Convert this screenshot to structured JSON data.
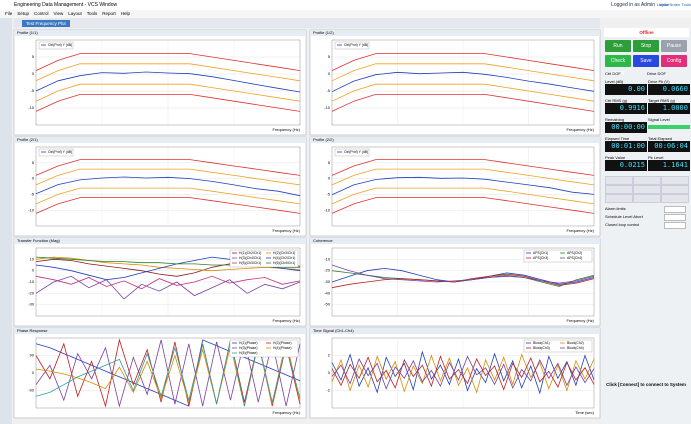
{
  "window": {
    "title": "Engineering Data Management - VCS Window",
    "user": "Logged in as Admin",
    "actions": [
      "Logout",
      "Write Notes",
      "Tools"
    ]
  },
  "menu": [
    "File",
    "Setup",
    "Control",
    "View",
    "Layout",
    "Tools",
    "Report",
    "Help"
  ],
  "tab": "Test Frequency Plot",
  "chart_data": [
    {
      "type": "line",
      "title": "Profile (1/1)",
      "x_label": "Frequency (Hz)",
      "ylim": [
        -15,
        10
      ],
      "yticks": [
        -10,
        -5,
        0,
        5
      ],
      "series": [
        {
          "color": "#e03030",
          "values": [
            1,
            4,
            6,
            6,
            6,
            6,
            6,
            6,
            5,
            4,
            3,
            2,
            1
          ]
        },
        {
          "color": "#f0a020",
          "values": [
            -2,
            1,
            3,
            3,
            3,
            3,
            3,
            3,
            2,
            1,
            0,
            -1,
            -2
          ]
        },
        {
          "name": "Ctrl(Prof) Y (dB)",
          "color": "#1f3fbf",
          "values": [
            -5,
            -2,
            -0.5,
            0.4,
            0.2,
            0.6,
            0.3,
            0.1,
            -0.8,
            -1.9,
            -3.1,
            -4.2,
            -5.3
          ]
        },
        {
          "color": "#f0a020",
          "values": [
            -8,
            -5,
            -3,
            -3,
            -3,
            -3,
            -3,
            -3,
            -4,
            -5,
            -6,
            -7,
            -8
          ]
        },
        {
          "color": "#e03030",
          "values": [
            -11,
            -8,
            -6,
            -6,
            -6,
            -6,
            -6,
            -6,
            -7,
            -8,
            -9,
            -10,
            -11
          ]
        }
      ]
    },
    {
      "type": "line",
      "title": "Profile (1/2)",
      "x_label": "Frequency (Hz)",
      "ylim": [
        -15,
        10
      ],
      "yticks": [
        -10,
        -5,
        0,
        5
      ],
      "series": [
        {
          "color": "#e03030",
          "values": [
            1,
            4,
            6,
            6,
            6,
            6,
            6,
            6,
            5,
            4,
            3,
            2,
            1
          ]
        },
        {
          "color": "#f0a020",
          "values": [
            -2,
            1,
            3,
            3,
            3,
            3,
            3,
            3,
            2,
            1,
            0,
            -1,
            -2
          ]
        },
        {
          "name": "Ctrl(Prof) Y (dB)",
          "color": "#1f3fbf",
          "values": [
            -5.2,
            -2.1,
            -0.2,
            0.5,
            0.1,
            0.3,
            0.5,
            -0.1,
            -1,
            -2.1,
            -3,
            -4.1,
            -5.1
          ]
        },
        {
          "color": "#f0a020",
          "values": [
            -8,
            -5,
            -3,
            -3,
            -3,
            -3,
            -3,
            -3,
            -4,
            -5,
            -6,
            -7,
            -8
          ]
        },
        {
          "color": "#e03030",
          "values": [
            -11,
            -8,
            -6,
            -6,
            -6,
            -6,
            -6,
            -6,
            -7,
            -8,
            -9,
            -10,
            -11
          ]
        }
      ]
    },
    {
      "type": "line",
      "title": "Profile (2/1)",
      "x_label": "Frequency (Hz)",
      "ylim": [
        -15,
        10
      ],
      "yticks": [
        -10,
        -5,
        0,
        5
      ],
      "series": [
        {
          "color": "#e03030",
          "values": [
            1,
            4,
            6,
            6,
            6,
            6,
            6,
            6,
            5,
            4,
            3,
            2,
            1
          ]
        },
        {
          "color": "#f0a020",
          "values": [
            -2,
            1,
            3,
            3,
            3,
            3,
            3,
            3,
            2,
            1,
            0,
            -1,
            -2
          ]
        },
        {
          "name": "Ctrl(Prof) Y (dB)",
          "color": "#1f3fbf",
          "values": [
            -4.8,
            -1.9,
            -0.4,
            0.2,
            0.5,
            0.2,
            0.4,
            0,
            -0.9,
            -2,
            -3.2,
            -4,
            -5.4
          ]
        },
        {
          "color": "#f0a020",
          "values": [
            -8,
            -5,
            -3,
            -3,
            -3,
            -3,
            -3,
            -3,
            -4,
            -5,
            -6,
            -7,
            -8
          ]
        },
        {
          "color": "#e03030",
          "values": [
            -11,
            -8,
            -6,
            -6,
            -6,
            -6,
            -6,
            -6,
            -7,
            -8,
            -9,
            -10,
            -11
          ]
        }
      ]
    },
    {
      "type": "line",
      "title": "Profile (2/2)",
      "x_label": "Frequency (Hz)",
      "ylim": [
        -15,
        10
      ],
      "yticks": [
        -10,
        -5,
        0,
        5
      ],
      "series": [
        {
          "color": "#e03030",
          "values": [
            1,
            4,
            6,
            6,
            6,
            6,
            6,
            6,
            5,
            4,
            3,
            2,
            1
          ]
        },
        {
          "color": "#f0a020",
          "values": [
            -2,
            1,
            3,
            3,
            3,
            3,
            3,
            3,
            2,
            1,
            0,
            -1,
            -2
          ]
        },
        {
          "name": "Ctrl(Prof) Y (dB)",
          "color": "#1f3fbf",
          "values": [
            -5.1,
            -2,
            -0.3,
            0.3,
            0.4,
            0.1,
            0.2,
            -0.2,
            -1.1,
            -2,
            -2.9,
            -4.3,
            -5
          ]
        },
        {
          "color": "#f0a020",
          "values": [
            -8,
            -5,
            -3,
            -3,
            -3,
            -3,
            -3,
            -3,
            -4,
            -5,
            -6,
            -7,
            -8
          ]
        },
        {
          "color": "#e03030",
          "values": [
            -11,
            -8,
            -6,
            -6,
            -6,
            -6,
            -6,
            -6,
            -7,
            -8,
            -9,
            -10,
            -11
          ]
        }
      ]
    },
    {
      "type": "line",
      "title": "Transfer Function (Mag)",
      "x_label": "Frequency (Hz)",
      "ylim": [
        -40,
        20
      ],
      "yticks": [
        -30,
        -20,
        -10,
        0,
        10
      ],
      "series": [
        {
          "name": "H(1)(Ch2/Ch1)",
          "color": "#8b1a1a",
          "values": [
            8,
            10,
            9,
            6,
            4,
            2,
            0,
            -3,
            -5,
            -2,
            3,
            6,
            8,
            7,
            5,
            4
          ]
        },
        {
          "name": "H(2)(Ch3/Ch1)",
          "color": "#d98c00",
          "values": [
            10,
            12,
            11,
            9,
            7,
            6,
            5,
            3,
            2,
            1,
            0,
            1,
            2,
            3,
            2,
            1
          ]
        },
        {
          "name": "H(3)(Ch4/Ch1)",
          "color": "#7a3fa0",
          "values": [
            -20,
            -10,
            -5,
            -15,
            -8,
            -25,
            -12,
            -18,
            -10,
            -22,
            -15,
            -8,
            -20,
            -12,
            -16,
            -10
          ]
        },
        {
          "name": "H(4)(Ch2/Ch1)",
          "color": "#1f3fbf",
          "values": [
            5,
            3,
            0,
            -4,
            -8,
            -6,
            -2,
            2,
            6,
            9,
            12,
            10,
            6,
            4,
            2,
            0
          ]
        },
        {
          "name": "H(5)(Ch3/Ch1)",
          "color": "#c03080",
          "values": [
            -5,
            -8,
            -12,
            -6,
            -14,
            -9,
            -16,
            -7,
            -13,
            -10,
            -5,
            -11,
            -8,
            -6,
            -12,
            -9
          ]
        },
        {
          "name": "H(6)(Ch4/Ch1)",
          "color": "#2f7f2f",
          "values": [
            12,
            11,
            10,
            9,
            8,
            8,
            7,
            7,
            6,
            6,
            5,
            5,
            4,
            4,
            3,
            3
          ]
        }
      ]
    },
    {
      "type": "line",
      "title": "Coherence",
      "x_label": "Frequency (Hz)",
      "ylim": [
        -60,
        0
      ],
      "yticks": [
        -50,
        -40,
        -30,
        -20,
        -10
      ],
      "series": [
        {
          "name": "APS(Ch1)",
          "color": "#1f3fbf",
          "values": [
            -30,
            -25,
            -20,
            -18,
            -20,
            -24,
            -28,
            -30,
            -28,
            -25,
            -22,
            -24,
            -28,
            -32,
            -30,
            -26
          ]
        },
        {
          "name": "APS(Ch2)",
          "color": "#2f7f2f",
          "values": [
            -20,
            -22,
            -24,
            -26,
            -27,
            -28,
            -29,
            -30,
            -28,
            -26,
            -24,
            -26,
            -30,
            -34,
            -28,
            -24
          ]
        },
        {
          "name": "APS(Ch3)",
          "color": "#c02020",
          "values": [
            -35,
            -32,
            -30,
            -28,
            -27,
            -28,
            -29,
            -30,
            -27,
            -25,
            -23,
            -25,
            -29,
            -33,
            -31,
            -27
          ]
        },
        {
          "name": "APS(Ch4)",
          "color": "#7a3fa0",
          "values": [
            -15,
            -20,
            -24,
            -27,
            -28,
            -29,
            -30,
            -29,
            -28,
            -26,
            -25,
            -26,
            -29,
            -31,
            -29,
            -25
          ]
        }
      ]
    },
    {
      "type": "line",
      "title": "Phase Response",
      "x_label": "Frequency (Hz)",
      "ylim": [
        -180,
        180
      ],
      "yticks": [
        -90,
        0,
        90
      ],
      "series": [
        {
          "name": "H(1)(Phase)",
          "color": "#1f3fbf",
          "values": [
            150,
            130,
            100,
            70,
            40,
            10,
            -20,
            -50,
            -80,
            -110,
            -140,
            -170,
            170,
            140,
            110,
            80,
            50,
            20,
            -10,
            -40
          ]
        },
        {
          "name": "H(2)(Phase)",
          "color": "#c02020",
          "values": [
            90,
            -30,
            150,
            -120,
            60,
            -170,
            170,
            -60,
            120,
            -150,
            160,
            -170,
            150,
            -160,
            170,
            -150,
            160,
            -170,
            140,
            -160
          ]
        },
        {
          "name": "H(3)(Phase)",
          "color": "#7a3fa0",
          "values": [
            -60,
            40,
            -140,
            100,
            -30,
            130,
            -170,
            80,
            -110,
            170,
            -160,
            150,
            -170,
            160,
            -140,
            170,
            -150,
            160,
            -170,
            150
          ]
        },
        {
          "name": "H(4)(Phase)",
          "color": "#d98c00",
          "values": [
            20,
            10,
            -5,
            -25,
            -50,
            -80,
            30,
            -100,
            60,
            -130,
            90,
            -150,
            120,
            -160,
            140,
            -170,
            150,
            -160,
            170,
            -150
          ]
        },
        {
          "name": "H(5)(Phase)",
          "color": "#2f9f9f",
          "values": [
            -120,
            -100,
            -60,
            -20,
            10,
            40,
            70,
            -90,
            100,
            -120,
            130,
            -140,
            150,
            -160,
            170,
            -170,
            160,
            -150,
            140,
            -130
          ]
        }
      ]
    },
    {
      "type": "line",
      "title": "Time Signal (Ch1-Ch4)",
      "x_label": "Time (sec)",
      "ylim": [
        -4,
        4
      ],
      "yticks": [
        -2,
        0,
        2
      ],
      "series": [
        {
          "name": "Block(Ch1)",
          "color": "#1f3fbf",
          "values": [
            1.2,
            -0.8,
            2.1,
            -1.5,
            0.6,
            -2.2,
            1.8,
            -0.4,
            1.1,
            -1.9,
            2.4,
            -0.7,
            0.9,
            -1.3,
            1.6,
            -2.0,
            0.5,
            -1.1,
            2.2,
            -0.9,
            1.4,
            -1.7,
            0.8,
            -2.3,
            1.9,
            -0.6,
            1.3,
            -1.4,
            2.0,
            -0.8
          ]
        },
        {
          "name": "Block(Ch2)",
          "color": "#d98c00",
          "values": [
            -1.0,
            1.5,
            -2.0,
            0.9,
            -1.6,
            1.9,
            -0.7,
            1.3,
            -2.1,
            0.8,
            -1.2,
            2.0,
            -0.9,
            1.7,
            -1.4,
            0.6,
            -2.2,
            1.5,
            -0.8,
            1.8,
            -1.3,
            2.1,
            -0.5,
            1.2,
            -1.8,
            0.9,
            -2.0,
            1.4,
            -0.7,
            1.6
          ]
        },
        {
          "name": "Block(Ch3)",
          "color": "#c02020",
          "values": [
            0.5,
            -1.4,
            1.0,
            -0.6,
            1.8,
            -1.0,
            0.3,
            -1.7,
            1.5,
            -0.4,
            0.9,
            -1.5,
            1.9,
            -0.7,
            0.4,
            -1.2,
            1.6,
            -0.3,
            0.8,
            -1.9,
            1.1,
            -0.5,
            1.7,
            -1.0,
            0.2,
            -1.6,
            1.2,
            -0.8,
            0.6,
            -1.3
          ]
        },
        {
          "name": "Block(Ch4)",
          "color": "#7a3fa0",
          "values": [
            -0.4,
            0.9,
            -1.2,
            1.6,
            -0.3,
            1.1,
            -1.8,
            0.7,
            -0.6,
            1.4,
            -1.0,
            0.3,
            -1.5,
            1.2,
            -0.8,
            1.9,
            -0.2,
            0.6,
            -1.3,
            1.0,
            -1.7,
            0.4,
            -0.9,
            1.5,
            -0.6,
            1.1,
            -1.4,
            0.7,
            -1.1,
            0.5
          ]
        }
      ]
    }
  ],
  "control": {
    "status": "Offline",
    "buttons": [
      "Run",
      "Stop",
      "Pause",
      "Check Items",
      "Save",
      "Config"
    ],
    "options": [
      "Ctrl DOF",
      "Drive DOF"
    ],
    "readouts": [
      {
        "label": "Level (dB)",
        "value": "0.00"
      },
      {
        "label": "Drive Pk (V)",
        "value": "0.0660"
      },
      {
        "label": "Ctrl RMS (g)",
        "value": "0.9916"
      },
      {
        "label": "Target RMS (g)",
        "value": "1.0000"
      },
      {
        "label": "Remaining",
        "value": "00:00:00"
      },
      {
        "label": "Signal Level"
      },
      {
        "label": "Elapsed Time",
        "value": "00:01:00"
      },
      {
        "label": "Total Elapsed",
        "value": "00:06:04"
      },
      {
        "label": "Peak Value",
        "value": "0.0215"
      },
      {
        "label": "Pk Level",
        "value": "1.1641"
      }
    ],
    "checks": [
      "Alarm limits",
      "Schedule Level Abort",
      "Closed loop control"
    ],
    "message": "Click [Connect] to connect to System"
  }
}
